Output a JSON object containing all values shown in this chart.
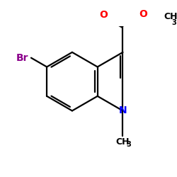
{
  "background": "#ffffff",
  "bond_color": "#000000",
  "bond_lw": 1.6,
  "atom_colors": {
    "Br": "#8B008B",
    "N": "#0000FF",
    "O": "#FF0000",
    "C": "#000000"
  },
  "fontsizes": {
    "Br": 10,
    "N": 10,
    "O": 10,
    "CH3_main": 9,
    "sub3": 7
  },
  "figsize": [
    2.5,
    2.5
  ],
  "dpi": 100
}
